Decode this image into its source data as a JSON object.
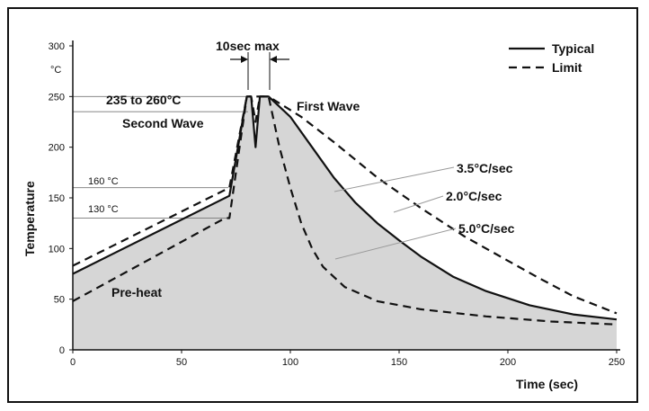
{
  "chart_data": {
    "type": "line",
    "xlabel": "Time (sec)",
    "ylabel": "Temperature",
    "y_unit": "°C",
    "xlim": [
      0,
      250
    ],
    "ylim": [
      0,
      300
    ],
    "x_ticks": [
      0,
      50,
      100,
      150,
      200,
      250
    ],
    "y_ticks": [
      0,
      50,
      100,
      150,
      200,
      250,
      300
    ],
    "grid": false,
    "legend": {
      "position": "top-right",
      "entries": [
        {
          "label": "Typical",
          "style": "solid"
        },
        {
          "label": "Limit",
          "style": "dashed"
        }
      ]
    },
    "series": [
      {
        "name": "Typical",
        "style": "solid",
        "points": [
          [
            0,
            75
          ],
          [
            72,
            152
          ],
          [
            80,
            250
          ],
          [
            82,
            250
          ],
          [
            84,
            200
          ],
          [
            86,
            250
          ],
          [
            90,
            250
          ],
          [
            100,
            230
          ],
          [
            110,
            200
          ],
          [
            120,
            170
          ],
          [
            130,
            145
          ],
          [
            140,
            125
          ],
          [
            150,
            108
          ],
          [
            160,
            92
          ],
          [
            175,
            72
          ],
          [
            190,
            58
          ],
          [
            210,
            44
          ],
          [
            230,
            35
          ],
          [
            250,
            30
          ]
        ]
      },
      {
        "name": "Limit",
        "style": "dashed",
        "points": [
          [
            0,
            83
          ],
          [
            72,
            160
          ],
          [
            80,
            250
          ],
          [
            82,
            250
          ],
          [
            84,
            225
          ],
          [
            86,
            250
          ],
          [
            90,
            250
          ],
          [
            105,
            230
          ],
          [
            120,
            205
          ],
          [
            140,
            170
          ],
          [
            160,
            140
          ],
          [
            180,
            112
          ],
          [
            200,
            88
          ],
          [
            215,
            70
          ],
          [
            230,
            53
          ],
          [
            250,
            36
          ]
        ]
      },
      {
        "name": "Limit",
        "style": "dashed",
        "points": [
          [
            0,
            48
          ],
          [
            70,
            130
          ],
          [
            72,
            130
          ],
          [
            80,
            250
          ],
          [
            90,
            250
          ],
          [
            95,
            200
          ],
          [
            100,
            160
          ],
          [
            105,
            125
          ],
          [
            110,
            100
          ],
          [
            115,
            82
          ],
          [
            125,
            62
          ],
          [
            140,
            48
          ],
          [
            160,
            40
          ],
          [
            190,
            33
          ],
          [
            220,
            28
          ],
          [
            250,
            25
          ]
        ]
      }
    ],
    "annotations": [
      {
        "text": "10sec max"
      },
      {
        "text": "235 to 260°C"
      },
      {
        "text": "Second Wave"
      },
      {
        "text": "First Wave"
      },
      {
        "text": "160 °C"
      },
      {
        "text": "130 °C"
      },
      {
        "text": "Pre-heat"
      },
      {
        "text": "3.5°C/sec"
      },
      {
        "text": "2.0°C/sec"
      },
      {
        "text": "5.0°C/sec"
      }
    ]
  }
}
